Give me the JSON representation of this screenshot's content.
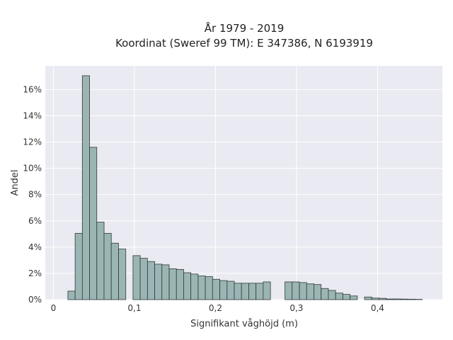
{
  "chart_data": {
    "type": "bar",
    "title": "År 1979 - 2019",
    "subtitle": "Koordinat (Sweref 99 TM): E 347386, N 6193919",
    "xlabel": "Signifikant våghöjd (m)",
    "ylabel": "Andel",
    "xlim": [
      -0.01,
      0.48
    ],
    "ylim": [
      0,
      17.8
    ],
    "x_ticks": [
      0,
      0.1,
      0.2,
      0.3,
      0.4
    ],
    "x_tick_labels": [
      "0",
      "0,1",
      "0,2",
      "0,3",
      "0,4"
    ],
    "y_ticks": [
      0,
      2,
      4,
      6,
      8,
      10,
      12,
      14,
      16
    ],
    "y_tick_labels": [
      "0%",
      "2%",
      "4%",
      "6%",
      "8%",
      "10%",
      "12%",
      "14%",
      "16%"
    ],
    "bin_width": 0.00893,
    "bin_starts": [
      0.0179,
      0.0268,
      0.0357,
      0.0446,
      0.0536,
      0.0625,
      0.0714,
      0.0804,
      0.0982,
      0.1071,
      0.1161,
      0.125,
      0.1339,
      0.1429,
      0.1518,
      0.1607,
      0.1696,
      0.1786,
      0.1875,
      0.1964,
      0.2054,
      0.2143,
      0.2232,
      0.2321,
      0.2411,
      0.25,
      0.2589,
      0.2857,
      0.2946,
      0.3036,
      0.3125,
      0.3214,
      0.3304,
      0.3393,
      0.3482,
      0.3571,
      0.3661,
      0.3839,
      0.3929,
      0.4018,
      0.4107,
      0.4196,
      0.4286,
      0.4375,
      0.4464
    ],
    "values": [
      0.65,
      5.05,
      17.05,
      11.6,
      5.9,
      5.05,
      4.3,
      3.85,
      3.35,
      3.15,
      2.9,
      2.7,
      2.65,
      2.35,
      2.3,
      2.05,
      1.95,
      1.8,
      1.75,
      1.55,
      1.45,
      1.4,
      1.25,
      1.25,
      1.25,
      1.25,
      1.35,
      1.35,
      1.35,
      1.3,
      1.2,
      1.15,
      0.85,
      0.7,
      0.5,
      0.4,
      0.28,
      0.2,
      0.12,
      0.1,
      0.05,
      0.05,
      0.04,
      0.03,
      0.02
    ],
    "colors": {
      "bar": "#9bb5b4",
      "edge": "#2f3a3a",
      "background": "#eaeaf2",
      "grid": "#ffffff"
    },
    "grid": true,
    "legend": false
  }
}
